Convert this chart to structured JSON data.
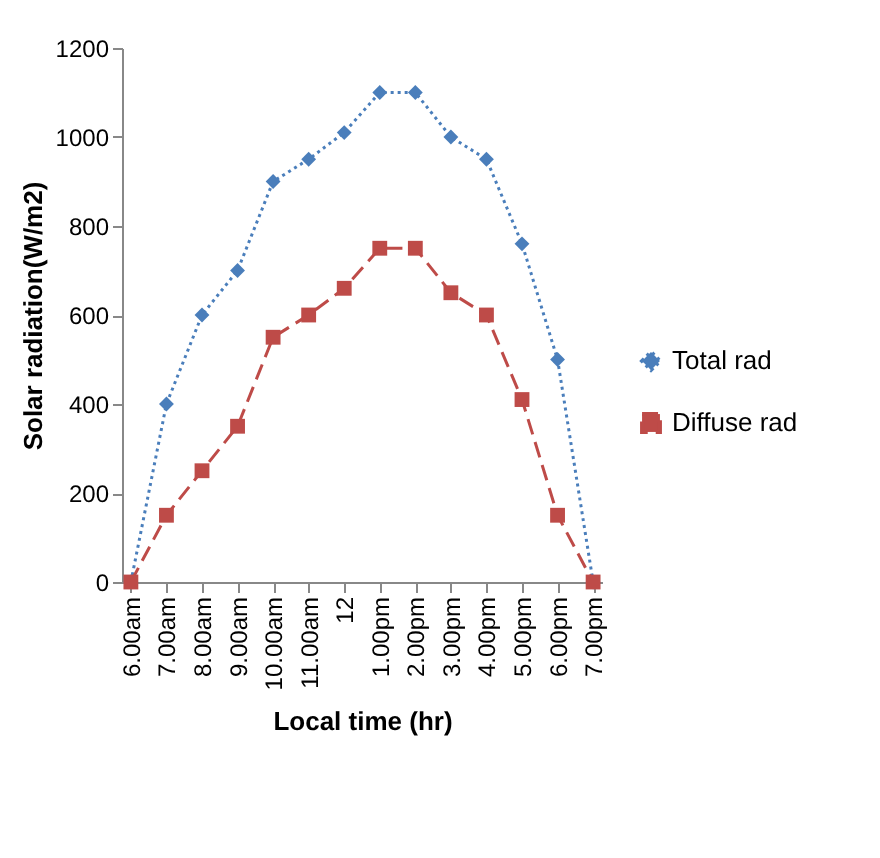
{
  "chart_data": {
    "type": "line",
    "xlabel": "Local time (hr)",
    "ylabel": "Solar radiation(W/m2)",
    "categories": [
      "6.00am",
      "7.00am",
      "8.00am",
      "9.00am",
      "10.00am",
      "11.00am",
      "12",
      "1.00pm",
      "2.00pm",
      "3.00pm",
      "4.00pm",
      "5.00pm",
      "6.00pm",
      "7.00pm"
    ],
    "series": [
      {
        "name": "Total rad",
        "color": "#4a7ebb",
        "marker": "diamond",
        "line_style": "dotted",
        "values": [
          0,
          400,
          600,
          700,
          900,
          950,
          1010,
          1100,
          1100,
          1000,
          950,
          760,
          500,
          0
        ]
      },
      {
        "name": "Diffuse rad",
        "color": "#be4b48",
        "marker": "square",
        "line_style": "dashed",
        "values": [
          0,
          150,
          250,
          350,
          550,
          600,
          660,
          750,
          750,
          650,
          600,
          410,
          150,
          0
        ]
      }
    ],
    "ylim": [
      0,
      1200
    ],
    "yticks": [
      0,
      200,
      400,
      600,
      800,
      1000,
      1200
    ],
    "grid": false,
    "legend": "right"
  }
}
